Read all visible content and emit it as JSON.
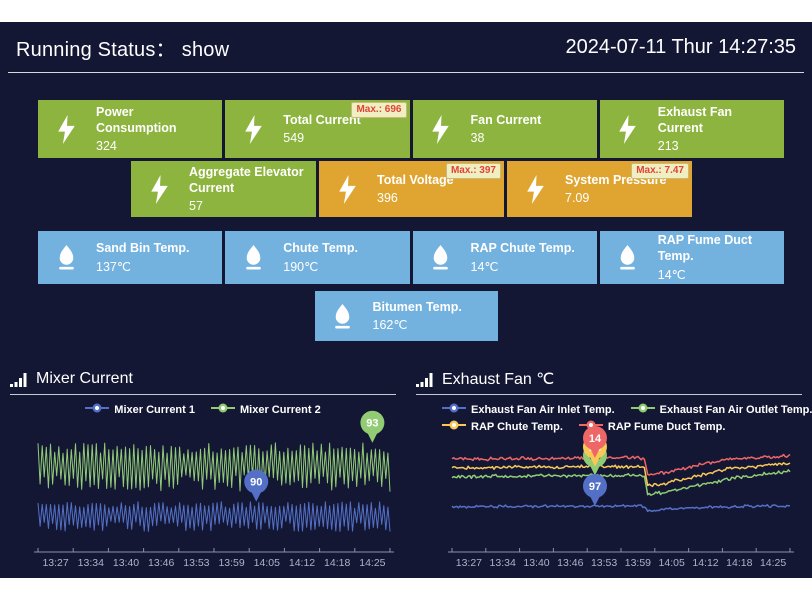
{
  "header": {
    "running_status_label": "Running Status：",
    "running_status_value": "show",
    "datetime": "2024-07-11 Thur 14:27:35"
  },
  "colors": {
    "background": "#131734",
    "card_green": "#8cb43e",
    "card_orange": "#e0a530",
    "card_blue": "#73b1df",
    "badge_bg": "#f0efc2",
    "badge_text": "#e04338",
    "series_blue": "#5470c6",
    "series_green": "#91cc75",
    "series_yellow": "#fac858",
    "series_red": "#ee6666"
  },
  "cards": {
    "rows": [
      {
        "name": "row1",
        "cards": [
          {
            "icon": "bolt",
            "label": "Power Consumption",
            "value": "324",
            "color": "green"
          },
          {
            "icon": "bolt",
            "label": "Total Current",
            "value": "549",
            "color": "green",
            "max": "Max.: 696"
          },
          {
            "icon": "bolt",
            "label": "Fan Current",
            "value": "38",
            "color": "green"
          },
          {
            "icon": "bolt",
            "label": "Exhaust Fan Current",
            "value": "213",
            "color": "green"
          }
        ]
      },
      {
        "name": "row2",
        "cards": [
          {
            "icon": "bolt",
            "label": "Aggregate Elevator Current",
            "value": "57",
            "color": "green"
          },
          {
            "icon": "bolt",
            "label": "Total Voltage",
            "value": "396",
            "color": "orange",
            "max": "Max.: 397"
          },
          {
            "icon": "bolt",
            "label": "System Pressure",
            "value": "7.09",
            "color": "orange",
            "max": "Max.: 7.47"
          }
        ]
      },
      {
        "name": "row3",
        "cards": [
          {
            "icon": "flame",
            "label": "Sand Bin Temp.",
            "value": "137℃",
            "color": "blue"
          },
          {
            "icon": "flame",
            "label": "Chute Temp.",
            "value": "190℃",
            "color": "blue"
          },
          {
            "icon": "flame",
            "label": "RAP Chute Temp.",
            "value": "14℃",
            "color": "blue"
          },
          {
            "icon": "flame",
            "label": "RAP Fume Duct Temp.",
            "value": "14℃",
            "color": "blue"
          }
        ]
      },
      {
        "name": "row4",
        "cards": [
          {
            "icon": "flame",
            "label": "Bitumen Temp.",
            "value": "162℃",
            "color": "blue"
          }
        ]
      }
    ]
  },
  "chart_data": [
    {
      "type": "line",
      "title": "Mixer Current",
      "categories": [
        "13:27",
        "13:34",
        "13:40",
        "13:46",
        "13:53",
        "13:59",
        "14:05",
        "14:12",
        "14:18",
        "14:25"
      ],
      "y_axis_visible": false,
      "grid": false,
      "legend_position": "top",
      "legend_rows": [
        [
          {
            "name": "Mixer Current 1",
            "color": "#5470c6"
          },
          {
            "name": "Mixer Current 2",
            "color": "#91cc75"
          }
        ]
      ],
      "series": [
        {
          "name": "Mixer Current 1",
          "color": "#5470c6",
          "pattern": "zigzag",
          "center_frac": 0.758,
          "amp_frac": 0.115,
          "points": 170,
          "width": 1
        },
        {
          "name": "Mixer Current 2",
          "color": "#91cc75",
          "pattern": "zigzag",
          "center_frac": 0.38,
          "amp_frac": 0.19,
          "points": 170,
          "width": 1
        }
      ],
      "markers": [
        {
          "series": 0,
          "x_frac": 0.62,
          "value": "90",
          "label_color": "#ffffff"
        },
        {
          "series": 1,
          "x_frac": 0.95,
          "value": "93",
          "label_color": "#ffffff"
        }
      ],
      "seed": 7
    },
    {
      "type": "line",
      "title": "Exhaust Fan ℃",
      "categories": [
        "13:27",
        "13:34",
        "13:40",
        "13:46",
        "13:53",
        "13:59",
        "14:05",
        "14:12",
        "14:18",
        "14:25"
      ],
      "y_axis_visible": false,
      "grid": false,
      "legend_position": "top",
      "legend_rows": [
        [
          {
            "name": "Exhaust Fan Air Inlet Temp.",
            "color": "#5470c6"
          },
          {
            "name": "Exhaust Fan Air Outlet Temp.",
            "color": "#91cc75"
          }
        ],
        [
          {
            "name": "RAP Chute Temp.",
            "color": "#fac858"
          },
          {
            "name": "RAP Fume Duct Temp.",
            "color": "#ee6666"
          }
        ]
      ],
      "series": [
        {
          "name": "Exhaust Fan Air Inlet Temp.",
          "color": "#5470c6",
          "pattern": "keypoints",
          "amp_frac": 0.012,
          "width": 1.5,
          "keypoints": [
            [
              0,
              0.683
            ],
            [
              0.56,
              0.675
            ],
            [
              0.571,
              0.683
            ],
            [
              0.578,
              0.717
            ],
            [
              0.64,
              0.7
            ],
            [
              0.8,
              0.683
            ],
            [
              1,
              0.675
            ]
          ]
        },
        {
          "name": "Exhaust Fan Air Outlet Temp.",
          "color": "#91cc75",
          "pattern": "keypoints",
          "amp_frac": 0.015,
          "width": 1.5,
          "keypoints": [
            [
              0,
              0.45
            ],
            [
              0.55,
              0.44
            ],
            [
              0.571,
              0.45
            ],
            [
              0.578,
              0.583
            ],
            [
              0.62,
              0.575
            ],
            [
              0.84,
              0.46
            ],
            [
              1,
              0.408
            ]
          ]
        },
        {
          "name": "RAP Chute Temp.",
          "color": "#fac858",
          "pattern": "keypoints",
          "amp_frac": 0.015,
          "width": 1.5,
          "keypoints": [
            [
              0,
              0.383
            ],
            [
              0.55,
              0.373
            ],
            [
              0.571,
              0.383
            ],
            [
              0.578,
              0.517
            ],
            [
              0.62,
              0.508
            ],
            [
              0.82,
              0.39
            ],
            [
              1,
              0.35
            ]
          ]
        },
        {
          "name": "RAP Fume Duct Temp.",
          "color": "#ee6666",
          "pattern": "keypoints",
          "amp_frac": 0.015,
          "width": 1.5,
          "keypoints": [
            [
              0,
              0.317
            ],
            [
              0.55,
              0.305
            ],
            [
              0.571,
              0.317
            ],
            [
              0.578,
              0.433
            ],
            [
              0.62,
              0.425
            ],
            [
              0.8,
              0.32
            ],
            [
              1,
              0.292
            ]
          ]
        }
      ],
      "markers": [
        {
          "series": 1,
          "x_frac": 0.423,
          "value": "69",
          "label_color": "#55552e"
        },
        {
          "series": 2,
          "x_frac": 0.423,
          "value": "15",
          "label_color": "#ffffff"
        },
        {
          "series": 3,
          "x_frac": 0.423,
          "value": "14",
          "label_color": "#ffffff"
        },
        {
          "series": 0,
          "x_frac": 0.423,
          "value": "97",
          "label_color": "#ffffff"
        }
      ],
      "seed": 11
    }
  ]
}
